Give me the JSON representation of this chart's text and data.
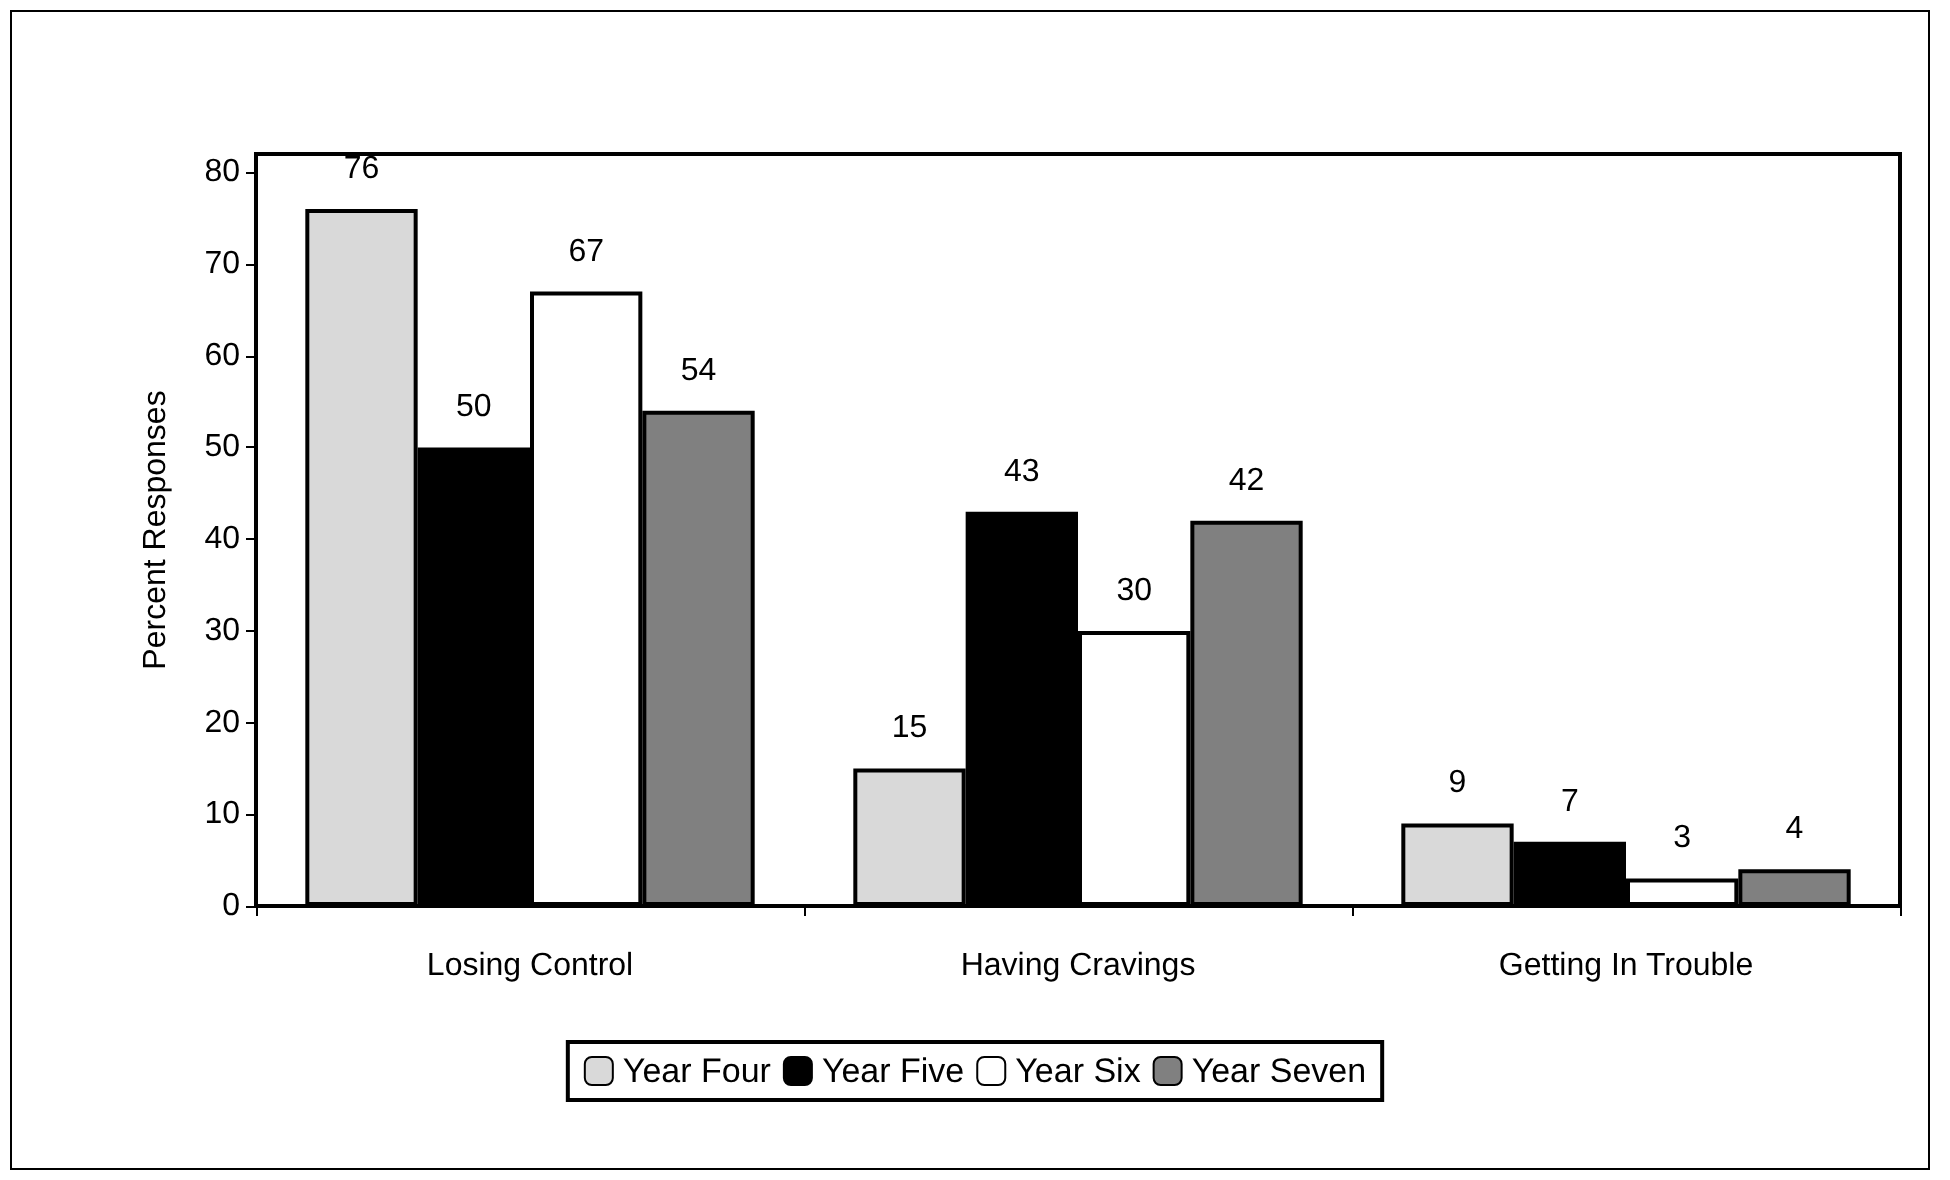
{
  "chart_data": {
    "type": "bar",
    "ylabel": "Percent Responses",
    "categories": [
      "Losing Control",
      "Having Cravings",
      "Getting In Trouble"
    ],
    "series": [
      {
        "name": "Year Four",
        "color": "#d9d9d9",
        "values": [
          76,
          15,
          9
        ]
      },
      {
        "name": "Year Five",
        "color": "#000000",
        "values": [
          50,
          43,
          7
        ]
      },
      {
        "name": "Year Six",
        "color": "#ffffff",
        "values": [
          67,
          30,
          3
        ]
      },
      {
        "name": "Year Seven",
        "color": "#808080",
        "values": [
          54,
          42,
          4
        ]
      }
    ],
    "ylim": [
      0,
      82
    ],
    "yticks": [
      0,
      10,
      20,
      30,
      40,
      50,
      60,
      70,
      80
    ],
    "grid": false,
    "legend": "bottom",
    "data_labels": true
  }
}
